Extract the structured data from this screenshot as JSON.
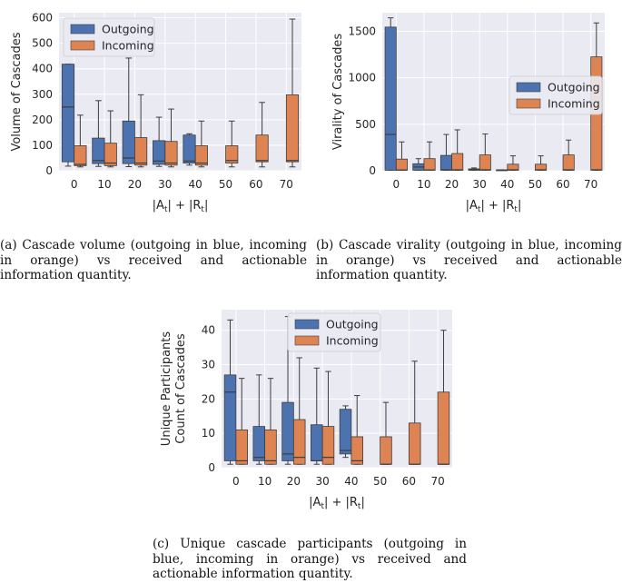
{
  "colors": {
    "outgoing": "#4c72b0",
    "incoming": "#dd8452",
    "plot_bg": "#eaeaf2",
    "edge": "#3d3d3d"
  },
  "chart_data": [
    {
      "type": "boxplot",
      "panel": "a",
      "ylabel": "Volume of Cascades",
      "xlabel": "|A_t| + |R_t|",
      "xlabel_main": "|A",
      "xlabel_tail": "| + |R",
      "xlabel_sub": "t",
      "xlabel_end": "|",
      "categories": [
        "0",
        "10",
        "20",
        "30",
        "40",
        "50",
        "60",
        "70"
      ],
      "ylim": [
        0,
        620
      ],
      "yticks": [
        0,
        100,
        200,
        300,
        400,
        500,
        600
      ],
      "legend": {
        "entries": [
          "Outgoing",
          "Incoming"
        ],
        "position": "upper-left"
      },
      "series": [
        {
          "name": "Outgoing",
          "boxes": [
            {
              "x": "0",
              "wlo": 18,
              "q1": 35,
              "med": 250,
              "q3": 418,
              "whi": 418
            },
            {
              "x": "10",
              "wlo": 17,
              "q1": 28,
              "med": 40,
              "q3": 128,
              "whi": 275
            },
            {
              "x": "20",
              "wlo": 16,
              "q1": 28,
              "med": 50,
              "q3": 195,
              "whi": 442
            },
            {
              "x": "30",
              "wlo": 17,
              "q1": 25,
              "med": 38,
              "q3": 118,
              "whi": 210
            },
            {
              "x": "40",
              "wlo": 22,
              "q1": 30,
              "med": 38,
              "q3": 140,
              "whi": 145
            }
          ]
        },
        {
          "name": "Incoming",
          "boxes": [
            {
              "x": "0",
              "wlo": 15,
              "q1": 20,
              "med": 25,
              "q3": 98,
              "whi": 218
            },
            {
              "x": "10",
              "wlo": 15,
              "q1": 20,
              "med": 30,
              "q3": 108,
              "whi": 235
            },
            {
              "x": "20",
              "wlo": 15,
              "q1": 22,
              "med": 30,
              "q3": 130,
              "whi": 298
            },
            {
              "x": "30",
              "wlo": 15,
              "q1": 22,
              "med": 30,
              "q3": 115,
              "whi": 242
            },
            {
              "x": "40",
              "wlo": 15,
              "q1": 22,
              "med": 30,
              "q3": 98,
              "whi": 195
            },
            {
              "x": "50",
              "wlo": 15,
              "q1": 30,
              "med": 40,
              "q3": 98,
              "whi": 195
            },
            {
              "x": "60",
              "wlo": 15,
              "q1": 35,
              "med": 40,
              "q3": 140,
              "whi": 268
            },
            {
              "x": "70",
              "wlo": 15,
              "q1": 35,
              "med": 40,
              "q3": 298,
              "whi": 595
            }
          ]
        }
      ]
    },
    {
      "type": "boxplot",
      "panel": "b",
      "ylabel": "Virality of Cascades",
      "xlabel": "|A_t| + |R_t|",
      "xlabel_main": "|A",
      "xlabel_tail": "| + |R",
      "xlabel_sub": "t",
      "xlabel_end": "|",
      "categories": [
        "0",
        "10",
        "20",
        "30",
        "40",
        "50",
        "60",
        "70"
      ],
      "ylim": [
        0,
        1700
      ],
      "yticks": [
        0,
        500,
        1000,
        1500
      ],
      "legend": {
        "entries": [
          "Outgoing",
          "Incoming"
        ],
        "position": "center-right"
      },
      "series": [
        {
          "name": "Outgoing",
          "boxes": [
            {
              "x": "0",
              "wlo": 5,
              "q1": 5,
              "med": 390,
              "q3": 1545,
              "whi": 1645
            },
            {
              "x": "10",
              "wlo": 5,
              "q1": 5,
              "med": 40,
              "q3": 75,
              "whi": 130
            },
            {
              "x": "20",
              "wlo": 5,
              "q1": 5,
              "med": 10,
              "q3": 165,
              "whi": 390
            },
            {
              "x": "30",
              "wlo": 5,
              "q1": 5,
              "med": 10,
              "q3": 20,
              "whi": 30
            },
            {
              "x": "40",
              "wlo": 5,
              "q1": 5,
              "med": 5,
              "q3": 10,
              "whi": 10
            }
          ]
        },
        {
          "name": "Incoming",
          "boxes": [
            {
              "x": "0",
              "wlo": 5,
              "q1": 5,
              "med": 8,
              "q3": 125,
              "whi": 310
            },
            {
              "x": "10",
              "wlo": 5,
              "q1": 5,
              "med": 8,
              "q3": 130,
              "whi": 310
            },
            {
              "x": "20",
              "wlo": 5,
              "q1": 5,
              "med": 10,
              "q3": 185,
              "whi": 440
            },
            {
              "x": "30",
              "wlo": 5,
              "q1": 5,
              "med": 10,
              "q3": 170,
              "whi": 395
            },
            {
              "x": "40",
              "wlo": 5,
              "q1": 5,
              "med": 10,
              "q3": 70,
              "whi": 160
            },
            {
              "x": "50",
              "wlo": 5,
              "q1": 5,
              "med": 10,
              "q3": 70,
              "whi": 160
            },
            {
              "x": "60",
              "wlo": 5,
              "q1": 5,
              "med": 10,
              "q3": 170,
              "whi": 330
            },
            {
              "x": "70",
              "wlo": 5,
              "q1": 5,
              "med": 10,
              "q3": 1225,
              "whi": 1590
            }
          ]
        }
      ]
    },
    {
      "type": "boxplot",
      "panel": "c",
      "ylabel": "Unique Participants Count of Cascades",
      "ylabel_lines": [
        "Unique Participants",
        "Count of Cascades"
      ],
      "xlabel": "|A_t| + |R_t|",
      "xlabel_main": "|A",
      "xlabel_tail": "| + |R",
      "xlabel_sub": "t",
      "xlabel_end": "|",
      "categories": [
        "0",
        "10",
        "20",
        "30",
        "40",
        "50",
        "60",
        "70"
      ],
      "ylim": [
        0,
        46
      ],
      "yticks": [
        0,
        10,
        20,
        30,
        40
      ],
      "legend": {
        "entries": [
          "Outgoing",
          "Incoming"
        ],
        "position": "upper-center"
      },
      "series": [
        {
          "name": "Outgoing",
          "boxes": [
            {
              "x": "0",
              "wlo": 1,
              "q1": 2,
              "med": 22,
              "q3": 27,
              "whi": 43
            },
            {
              "x": "10",
              "wlo": 1,
              "q1": 2,
              "med": 3,
              "q3": 12,
              "whi": 27
            },
            {
              "x": "20",
              "wlo": 1,
              "q1": 2,
              "med": 4,
              "q3": 19,
              "whi": 44
            },
            {
              "x": "30",
              "wlo": 1,
              "q1": 2,
              "med": 2,
              "q3": 12.5,
              "whi": 29
            },
            {
              "x": "40",
              "wlo": 3,
              "q1": 4,
              "med": 5,
              "q3": 17,
              "whi": 18
            }
          ]
        },
        {
          "name": "Incoming",
          "boxes": [
            {
              "x": "0",
              "wlo": 1,
              "q1": 1,
              "med": 2,
              "q3": 11,
              "whi": 26
            },
            {
              "x": "10",
              "wlo": 1,
              "q1": 1,
              "med": 2,
              "q3": 11,
              "whi": 26
            },
            {
              "x": "20",
              "wlo": 1,
              "q1": 1,
              "med": 3,
              "q3": 14,
              "whi": 32
            },
            {
              "x": "30",
              "wlo": 1,
              "q1": 1,
              "med": 3,
              "q3": 12,
              "whi": 28
            },
            {
              "x": "40",
              "wlo": 1,
              "q1": 1,
              "med": 2,
              "q3": 9,
              "whi": 21
            },
            {
              "x": "50",
              "wlo": 1,
              "q1": 1,
              "med": 1,
              "q3": 9,
              "whi": 19
            },
            {
              "x": "60",
              "wlo": 1,
              "q1": 1,
              "med": 1,
              "q3": 13,
              "whi": 31
            },
            {
              "x": "70",
              "wlo": 1,
              "q1": 1,
              "med": 1,
              "q3": 22,
              "whi": 40
            }
          ]
        }
      ]
    }
  ],
  "captions": [
    {
      "label": "(a)",
      "text": "Cascade volume (outgoing in blue, incoming in orange) vs received and actionable information quantity."
    },
    {
      "label": "(b)",
      "text": "Cascade virality (outgoing in blue, incoming in orange) vs received and actionable information quantity."
    },
    {
      "label": "(c)",
      "text": "Unique cascade participants (outgoing in blue, incoming in orange) vs received and actionable information quantity."
    }
  ]
}
